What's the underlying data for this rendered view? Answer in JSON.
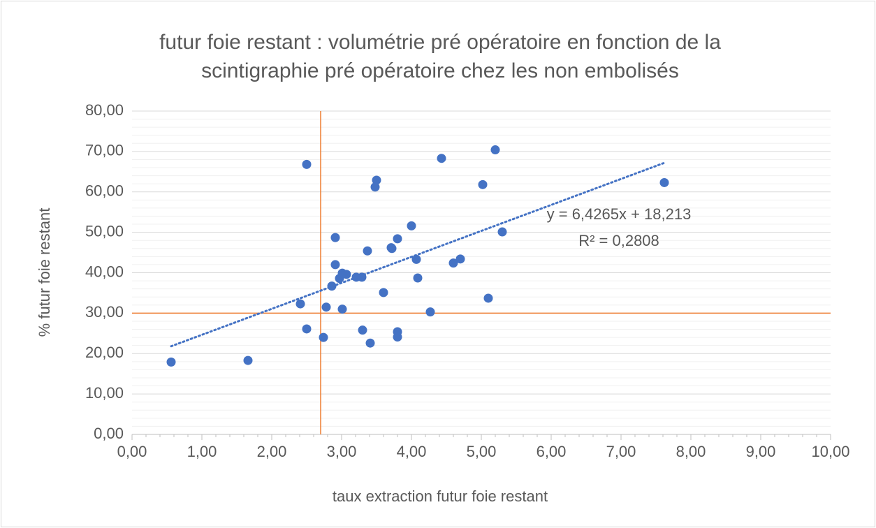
{
  "chart_data": {
    "type": "scatter",
    "title": [
      "futur foie restant : volumétrie pré opératoire en fonction de la",
      "scintigraphie pré opératoire chez les non embolisés"
    ],
    "x_label": "taux extraction futur foie restant",
    "y_label": "% futur foie restant",
    "color": "#4472c4",
    "x": [
      0.56,
      1.66,
      2.41,
      2.5,
      2.5,
      2.74,
      2.78,
      2.86,
      2.91,
      2.91,
      2.97,
      3.01,
      3.01,
      3.07,
      3.21,
      3.29,
      3.3,
      3.37,
      3.41,
      3.48,
      3.5,
      3.6,
      3.71,
      3.72,
      3.8,
      3.8,
      3.8,
      4.0,
      4.07,
      4.09,
      4.27,
      4.43,
      4.6,
      4.7,
      5.02,
      5.1,
      5.2,
      5.3,
      7.62
    ],
    "y": [
      17.9,
      18.3,
      32.3,
      66.8,
      26.1,
      24.0,
      31.5,
      36.7,
      48.7,
      42.0,
      38.6,
      31.0,
      39.9,
      39.6,
      38.9,
      38.9,
      25.8,
      45.4,
      22.6,
      61.2,
      62.9,
      35.1,
      46.2,
      46.0,
      48.4,
      25.4,
      24.1,
      51.6,
      43.3,
      38.7,
      30.3,
      68.3,
      42.4,
      43.4,
      61.8,
      33.7,
      70.4,
      50.1,
      62.3
    ],
    "xlim": [
      0,
      10
    ],
    "ylim": [
      0,
      80
    ],
    "xticks": [
      {
        "value": 0,
        "label": "0,00"
      },
      {
        "value": 1,
        "label": "1,00"
      },
      {
        "value": 2,
        "label": "2,00"
      },
      {
        "value": 3,
        "label": "3,00"
      },
      {
        "value": 4,
        "label": "4,00"
      },
      {
        "value": 5,
        "label": "5,00"
      },
      {
        "value": 6,
        "label": "6,00"
      },
      {
        "value": 7,
        "label": "7,00"
      },
      {
        "value": 8,
        "label": "8,00"
      },
      {
        "value": 9,
        "label": "9,00"
      },
      {
        "value": 10,
        "label": "10,00"
      }
    ],
    "yticks": [
      {
        "value": 0,
        "label": "0,00"
      },
      {
        "value": 10,
        "label": "10,00"
      },
      {
        "value": 20,
        "label": "20,00"
      },
      {
        "value": 30,
        "label": "30,00"
      },
      {
        "value": 40,
        "label": "40,00"
      },
      {
        "value": 50,
        "label": "50,00"
      },
      {
        "value": 60,
        "label": "60,00"
      },
      {
        "value": 70,
        "label": "70,00"
      },
      {
        "value": 80,
        "label": "80,00"
      }
    ],
    "grid": true,
    "reference_lines": {
      "x": 2.7,
      "y": 30,
      "color": "#ed7d31"
    },
    "trendline": {
      "slope": 6.4265,
      "intercept": 18.213,
      "x_range": [
        0.56,
        7.62
      ],
      "equation_label": "y = 6,4265x + 18,213",
      "r2_label": "R² = 0,2808"
    }
  }
}
